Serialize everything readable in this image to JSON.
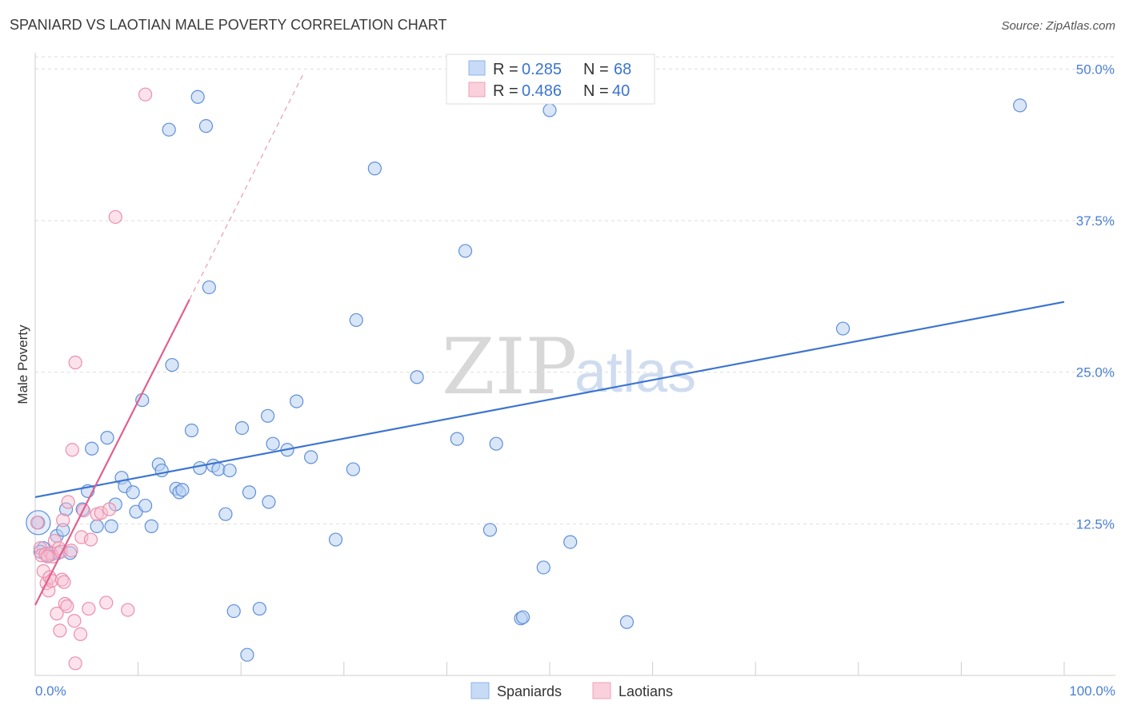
{
  "title": "SPANIARD VS LAOTIAN MALE POVERTY CORRELATION CHART",
  "source": "Source: ZipAtlas.com",
  "watermark": {
    "zip": "ZIP",
    "atlas": "atlas"
  },
  "legend": {
    "r_label": "R =",
    "n_label": "N =",
    "rows": [
      {
        "r": "0.285",
        "n": "68",
        "color": "#9dbfee"
      },
      {
        "r": "0.486",
        "n": "40",
        "color": "#f4a7bf"
      }
    ]
  },
  "bottom_legend": [
    "Spaniards",
    "Laotians"
  ],
  "colors": {
    "blue": "#3b74d0",
    "blue_fill": "#b9d2f3",
    "pink": "#e0608f",
    "pink_fill": "#f8c2d2"
  },
  "chart_data": {
    "type": "scatter",
    "title": "SPANIARD VS LAOTIAN MALE POVERTY CORRELATION CHART",
    "xlabel": "",
    "ylabel": "Male Poverty",
    "xlim": [
      0,
      100
    ],
    "ylim": [
      0,
      52
    ],
    "x_tick_labels": [
      "0.0%",
      "100.0%"
    ],
    "y_ticks": [
      12.5,
      25.0,
      37.5,
      50.0
    ],
    "y_tick_labels": [
      "12.5%",
      "25.0%",
      "37.5%",
      "50.0%"
    ],
    "series": [
      {
        "name": "Spaniards",
        "r": 0.285,
        "n": 68,
        "trend": {
          "x": [
            0,
            100
          ],
          "y": [
            14.7,
            30.8
          ]
        },
        "points": [
          [
            0.3,
            12.6
          ],
          [
            0.8,
            10.5
          ],
          [
            1.6,
            10.0
          ],
          [
            2.1,
            11.5
          ],
          [
            2.2,
            10.1
          ],
          [
            2.7,
            12.0
          ],
          [
            3.0,
            13.7
          ],
          [
            3.4,
            10.1
          ],
          [
            4.6,
            13.7
          ],
          [
            5.1,
            15.2
          ],
          [
            5.5,
            18.7
          ],
          [
            6.0,
            12.3
          ],
          [
            7.0,
            19.6
          ],
          [
            7.4,
            12.3
          ],
          [
            7.8,
            14.1
          ],
          [
            8.4,
            16.3
          ],
          [
            8.7,
            15.6
          ],
          [
            9.5,
            15.1
          ],
          [
            9.8,
            13.5
          ],
          [
            10.4,
            22.7
          ],
          [
            10.7,
            14.0
          ],
          [
            11.3,
            12.3
          ],
          [
            12.0,
            17.4
          ],
          [
            12.3,
            16.9
          ],
          [
            13.0,
            45.0
          ],
          [
            13.3,
            25.6
          ],
          [
            13.7,
            15.4
          ],
          [
            14.0,
            15.1
          ],
          [
            14.3,
            15.3
          ],
          [
            15.2,
            20.2
          ],
          [
            15.8,
            47.7
          ],
          [
            16.0,
            17.1
          ],
          [
            16.6,
            45.3
          ],
          [
            16.9,
            32.0
          ],
          [
            17.3,
            17.3
          ],
          [
            17.8,
            17.0
          ],
          [
            18.9,
            16.9
          ],
          [
            18.5,
            13.3
          ],
          [
            19.3,
            5.3
          ],
          [
            20.1,
            20.4
          ],
          [
            20.6,
            1.7
          ],
          [
            20.8,
            15.1
          ],
          [
            21.8,
            5.5
          ],
          [
            22.6,
            21.4
          ],
          [
            22.7,
            14.3
          ],
          [
            23.1,
            19.1
          ],
          [
            24.5,
            18.6
          ],
          [
            25.4,
            22.6
          ],
          [
            26.8,
            18.0
          ],
          [
            29.2,
            11.2
          ],
          [
            30.9,
            17.0
          ],
          [
            31.2,
            29.3
          ],
          [
            33.0,
            41.8
          ],
          [
            37.1,
            24.6
          ],
          [
            41.0,
            19.5
          ],
          [
            41.8,
            35.0
          ],
          [
            44.2,
            12.0
          ],
          [
            44.8,
            19.1
          ],
          [
            47.2,
            4.7
          ],
          [
            47.4,
            4.8
          ],
          [
            49.4,
            8.9
          ],
          [
            50.0,
            46.6
          ],
          [
            52.0,
            11.0
          ],
          [
            57.5,
            4.4
          ],
          [
            78.5,
            28.6
          ],
          [
            95.7,
            47.0
          ],
          [
            0.5,
            10.2
          ],
          [
            1.2,
            9.9
          ]
        ]
      },
      {
        "name": "Laotians",
        "r": 0.486,
        "n": 40,
        "trend": {
          "x": [
            0,
            15
          ],
          "y": [
            5.8,
            31.0
          ]
        },
        "trend_dashed": {
          "x": [
            15,
            26
          ],
          "y": [
            31.0,
            49.5
          ]
        },
        "points": [
          [
            0.2,
            12.6
          ],
          [
            0.5,
            10.5
          ],
          [
            0.6,
            9.9
          ],
          [
            0.8,
            8.6
          ],
          [
            1.0,
            10.0
          ],
          [
            1.1,
            7.6
          ],
          [
            1.3,
            7.0
          ],
          [
            1.4,
            8.1
          ],
          [
            1.5,
            10.1
          ],
          [
            1.6,
            7.8
          ],
          [
            1.7,
            9.8
          ],
          [
            1.9,
            11.1
          ],
          [
            2.1,
            5.1
          ],
          [
            2.3,
            10.5
          ],
          [
            2.4,
            3.7
          ],
          [
            2.5,
            10.2
          ],
          [
            2.6,
            7.9
          ],
          [
            2.7,
            12.8
          ],
          [
            2.8,
            7.7
          ],
          [
            2.9,
            5.9
          ],
          [
            3.1,
            5.7
          ],
          [
            3.2,
            14.3
          ],
          [
            3.5,
            10.3
          ],
          [
            3.6,
            18.6
          ],
          [
            3.8,
            4.5
          ],
          [
            3.9,
            25.8
          ],
          [
            3.9,
            1.0
          ],
          [
            4.4,
            3.4
          ],
          [
            4.5,
            11.4
          ],
          [
            4.7,
            13.6
          ],
          [
            5.2,
            5.5
          ],
          [
            5.4,
            11.2
          ],
          [
            6.0,
            13.3
          ],
          [
            6.4,
            13.4
          ],
          [
            6.9,
            6.0
          ],
          [
            7.2,
            13.7
          ],
          [
            7.8,
            37.8
          ],
          [
            9.0,
            5.4
          ],
          [
            10.7,
            47.9
          ],
          [
            1.2,
            9.8
          ]
        ]
      }
    ]
  }
}
